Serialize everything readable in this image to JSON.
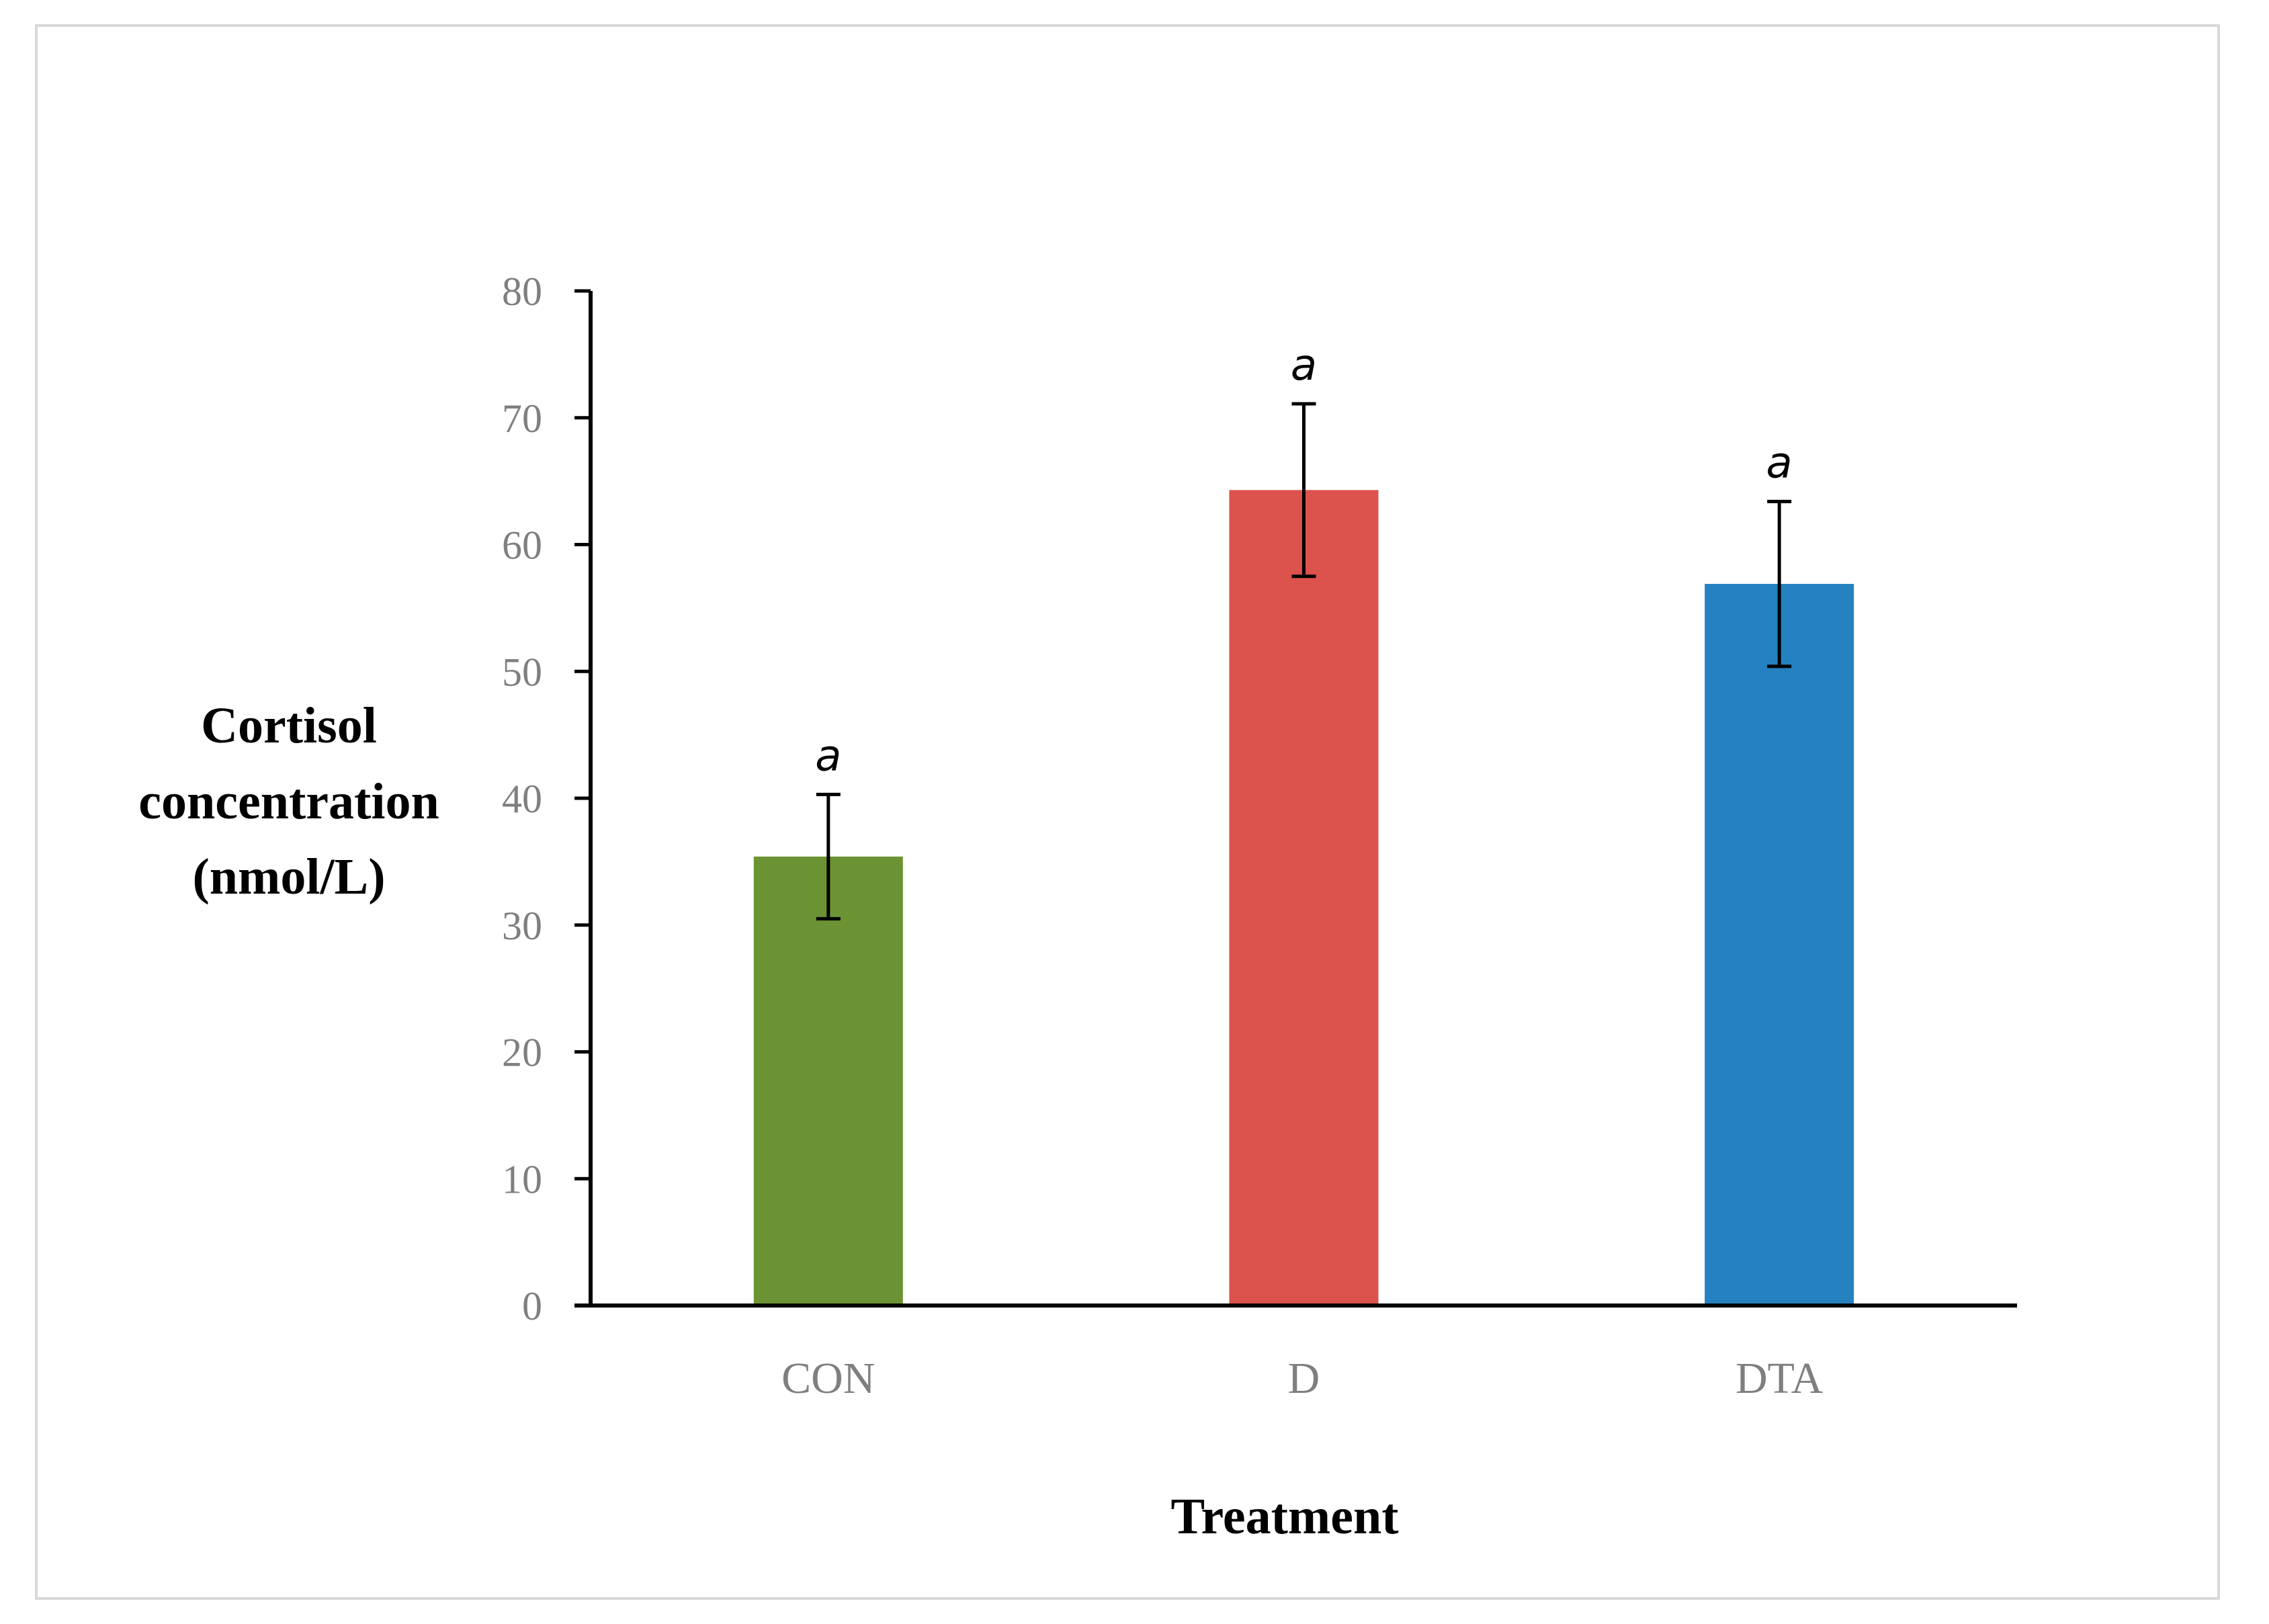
{
  "chart_data": {
    "type": "bar",
    "title": "",
    "xlabel": "Treatment",
    "ylabel_lines": [
      "Cortisol",
      "concentration",
      "(nmol/L)"
    ],
    "categories": [
      "CON",
      "D",
      "DTA"
    ],
    "values": [
      35.4,
      64.3,
      56.9
    ],
    "errors": [
      4.9,
      6.8,
      6.5
    ],
    "significance_letters": [
      "a",
      "a",
      "a"
    ],
    "colors": [
      "#6b9333",
      "#dc524d",
      "#2581c0"
    ],
    "ylim": [
      0,
      80
    ],
    "yticks": [
      0,
      10,
      20,
      30,
      40,
      50,
      60,
      70,
      80
    ],
    "grid": false,
    "legend": "none"
  }
}
